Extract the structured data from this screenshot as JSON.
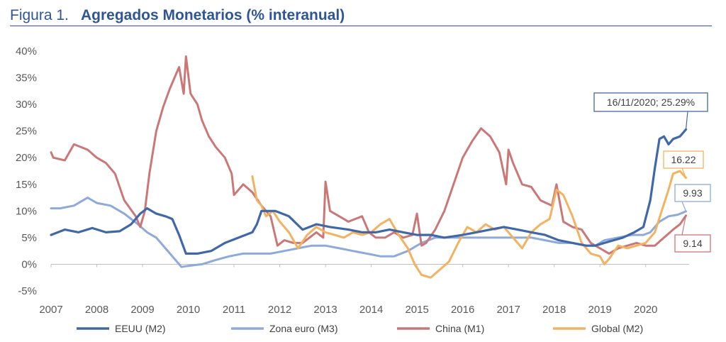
{
  "figure": {
    "prefix": "Figura 1.",
    "title": "Agregados Monetarios (% interanual)"
  },
  "chart_data": {
    "type": "line",
    "xlabel": "",
    "ylabel": "",
    "xlim": [
      2007,
      2020.95
    ],
    "ylim": [
      -5,
      40
    ],
    "y_ticks": [
      "40%",
      "35%",
      "30%",
      "25%",
      "20%",
      "15%",
      "10%",
      "5%",
      "0%",
      "-5%"
    ],
    "x_ticks": [
      "2007",
      "2008",
      "2009",
      "2010",
      "2011",
      "2012",
      "2013",
      "2014",
      "2015",
      "2016",
      "2017",
      "2018",
      "2019",
      "2020"
    ],
    "grid": false,
    "legend_position": "bottom",
    "series": [
      {
        "name": "EEUU (M2)",
        "color": "#4068a8",
        "x": [
          2007.0,
          2007.3,
          2007.6,
          2007.9,
          2008.2,
          2008.5,
          2008.75,
          2008.95,
          2009.1,
          2009.3,
          2009.5,
          2009.65,
          2009.8,
          2009.95,
          2010.2,
          2010.5,
          2010.8,
          2011.1,
          2011.4,
          2011.5,
          2011.6,
          2011.9,
          2012.2,
          2012.5,
          2012.8,
          2013.1,
          2013.5,
          2013.8,
          2014.1,
          2014.4,
          2014.7,
          2015.0,
          2015.3,
          2015.6,
          2016.0,
          2016.3,
          2016.6,
          2016.9,
          2017.2,
          2017.5,
          2017.8,
          2018.1,
          2018.4,
          2018.7,
          2018.9,
          2019.1,
          2019.3,
          2019.5,
          2019.75,
          2019.95,
          2020.1,
          2020.2,
          2020.3,
          2020.4,
          2020.5,
          2020.6,
          2020.75,
          2020.88
        ],
        "values": [
          5.5,
          6.5,
          6.0,
          6.8,
          6.0,
          6.2,
          7.5,
          9.5,
          10.5,
          9.5,
          9.0,
          8.5,
          5.5,
          2.0,
          2.0,
          2.5,
          4.0,
          5.0,
          6.0,
          7.5,
          10.0,
          10.0,
          9.0,
          6.5,
          7.5,
          7.0,
          6.5,
          6.0,
          6.0,
          6.5,
          6.0,
          5.5,
          5.5,
          5.0,
          5.5,
          6.0,
          6.5,
          7.0,
          6.5,
          6.0,
          5.5,
          4.5,
          4.0,
          3.5,
          3.5,
          4.0,
          4.5,
          5.0,
          6.0,
          7.0,
          12.0,
          18.0,
          23.5,
          24.0,
          22.5,
          23.5,
          24.0,
          25.29
        ]
      },
      {
        "name": "Zona euro (M3)",
        "color": "#8eaadb",
        "x": [
          2007.0,
          2007.2,
          2007.5,
          2007.8,
          2008.0,
          2008.3,
          2008.6,
          2008.9,
          2009.1,
          2009.3,
          2009.5,
          2009.7,
          2009.85,
          2010.0,
          2010.3,
          2010.6,
          2010.9,
          2011.2,
          2011.5,
          2011.8,
          2012.1,
          2012.4,
          2012.7,
          2013.0,
          2013.3,
          2013.6,
          2013.9,
          2014.2,
          2014.5,
          2014.8,
          2015.1,
          2015.4,
          2015.7,
          2016.0,
          2016.3,
          2016.6,
          2016.9,
          2017.2,
          2017.5,
          2017.8,
          2018.1,
          2018.4,
          2018.7,
          2018.9,
          2019.1,
          2019.4,
          2019.7,
          2019.95,
          2020.1,
          2020.3,
          2020.5,
          2020.7,
          2020.88
        ],
        "values": [
          10.5,
          10.5,
          11.0,
          12.5,
          11.5,
          11.0,
          9.5,
          7.5,
          6.0,
          5.0,
          3.0,
          1.0,
          -0.5,
          -0.3,
          0.0,
          0.8,
          1.5,
          2.0,
          2.0,
          2.0,
          2.5,
          3.0,
          3.5,
          3.5,
          3.0,
          2.5,
          2.0,
          1.5,
          1.5,
          2.5,
          4.0,
          5.0,
          5.0,
          5.0,
          5.0,
          5.0,
          5.0,
          5.0,
          5.0,
          4.5,
          4.0,
          4.0,
          3.5,
          3.5,
          4.5,
          5.0,
          5.5,
          5.5,
          6.0,
          8.0,
          9.0,
          9.3,
          9.93
        ]
      },
      {
        "name": "China (M1)",
        "color": "#cc7777",
        "x": [
          2007.0,
          2007.05,
          2007.3,
          2007.5,
          2007.8,
          2008.0,
          2008.2,
          2008.4,
          2008.6,
          2008.85,
          2008.95,
          2009.05,
          2009.15,
          2009.3,
          2009.45,
          2009.6,
          2009.8,
          2009.9,
          2009.95,
          2010.05,
          2010.2,
          2010.3,
          2010.45,
          2010.6,
          2010.8,
          2010.95,
          2011.0,
          2011.2,
          2011.4,
          2011.6,
          2011.8,
          2011.95,
          2012.1,
          2012.3,
          2012.5,
          2012.8,
          2012.95,
          2013.0,
          2013.1,
          2013.3,
          2013.5,
          2013.8,
          2013.95,
          2014.1,
          2014.3,
          2014.5,
          2014.7,
          2014.9,
          2015.0,
          2015.1,
          2015.2,
          2015.4,
          2015.6,
          2015.8,
          2016.0,
          2016.2,
          2016.4,
          2016.6,
          2016.8,
          2016.95,
          2017.0,
          2017.1,
          2017.3,
          2017.5,
          2017.7,
          2017.95,
          2018.05,
          2018.2,
          2018.4,
          2018.6,
          2018.8,
          2019.0,
          2019.2,
          2019.4,
          2019.6,
          2019.8,
          2020.0,
          2020.2,
          2020.4,
          2020.6,
          2020.75,
          2020.88
        ],
        "values": [
          21.0,
          20.0,
          19.5,
          22.5,
          21.5,
          20.0,
          19.0,
          17.0,
          12.0,
          9.0,
          7.0,
          10.0,
          17.0,
          25.0,
          29.5,
          33.0,
          37.0,
          32.0,
          39.0,
          32.0,
          30.0,
          27.0,
          24.0,
          22.0,
          20.0,
          17.0,
          13.0,
          15.0,
          13.5,
          11.0,
          9.0,
          3.5,
          4.5,
          4.0,
          4.0,
          6.0,
          5.0,
          15.5,
          10.0,
          9.0,
          8.0,
          9.0,
          6.0,
          5.0,
          5.0,
          6.0,
          5.0,
          5.5,
          9.5,
          3.5,
          4.0,
          6.5,
          10.0,
          15.0,
          20.0,
          23.0,
          25.5,
          24.0,
          21.0,
          15.0,
          21.5,
          19.0,
          15.0,
          14.5,
          12.0,
          11.0,
          15.0,
          8.0,
          7.0,
          6.5,
          4.0,
          3.0,
          2.0,
          3.0,
          3.5,
          4.0,
          3.5,
          3.5,
          5.0,
          6.5,
          7.5,
          9.14
        ]
      },
      {
        "name": "Global (M2)",
        "color": "#f4b260",
        "x": [
          2011.4,
          2011.5,
          2011.6,
          2011.7,
          2011.85,
          2012.0,
          2012.2,
          2012.4,
          2012.6,
          2012.8,
          2013.0,
          2013.2,
          2013.4,
          2013.6,
          2013.8,
          2014.0,
          2014.2,
          2014.4,
          2014.6,
          2014.8,
          2014.95,
          2015.1,
          2015.3,
          2015.5,
          2015.7,
          2015.9,
          2016.1,
          2016.3,
          2016.5,
          2016.7,
          2016.9,
          2017.1,
          2017.3,
          2017.5,
          2017.7,
          2017.9,
          2018.05,
          2018.2,
          2018.4,
          2018.6,
          2018.8,
          2019.0,
          2019.1,
          2019.2,
          2019.4,
          2019.6,
          2019.8,
          2020.0,
          2020.2,
          2020.35,
          2020.5,
          2020.6,
          2020.75,
          2020.88
        ],
        "values": [
          16.5,
          12.0,
          11.0,
          9.0,
          10.0,
          8.0,
          6.0,
          3.0,
          5.5,
          7.0,
          6.0,
          5.5,
          5.0,
          6.0,
          5.5,
          6.0,
          7.5,
          8.5,
          5.5,
          3.0,
          0.0,
          -2.0,
          -2.5,
          -1.0,
          0.5,
          4.0,
          7.0,
          6.0,
          7.5,
          6.5,
          7.0,
          5.0,
          3.0,
          6.0,
          7.5,
          8.5,
          14.0,
          13.0,
          9.0,
          4.0,
          2.0,
          1.5,
          0.0,
          1.0,
          3.5,
          3.0,
          3.5,
          4.0,
          6.0,
          10.0,
          14.0,
          17.0,
          17.5,
          16.22
        ]
      }
    ],
    "annotations": [
      {
        "text": "16/11/2020; 25.29%",
        "series": "EEUU (M2)",
        "x": 2020.88,
        "y": 25.29
      },
      {
        "text": "16.22",
        "series": "Global (M2)",
        "x": 2020.88,
        "y": 16.22
      },
      {
        "text": "9.93",
        "series": "Zona euro (M3)",
        "x": 2020.88,
        "y": 9.93
      },
      {
        "text": "9.14",
        "series": "China (M1)",
        "x": 2020.88,
        "y": 9.14
      }
    ]
  }
}
